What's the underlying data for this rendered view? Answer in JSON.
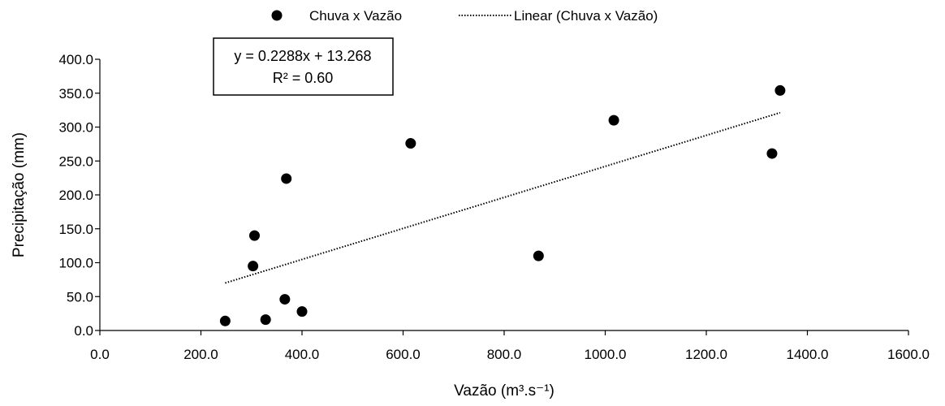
{
  "chart_data": {
    "type": "scatter",
    "xlabel": "Vazão (m³.s⁻¹)",
    "ylabel": "Precipitação (mm)",
    "xlim": [
      0,
      1600
    ],
    "ylim": [
      0,
      400
    ],
    "x_ticks": [
      "0.0",
      "200.0",
      "400.0",
      "600.0",
      "800.0",
      "1000.0",
      "1200.0",
      "1400.0",
      "1600.0"
    ],
    "y_ticks": [
      "0.0",
      "50.0",
      "100.0",
      "150.0",
      "200.0",
      "250.0",
      "300.0",
      "350.0",
      "400.0"
    ],
    "series": [
      {
        "name": "Chuva x Vazão",
        "color": "#000000",
        "points": [
          {
            "x": 248,
            "y": 14
          },
          {
            "x": 328,
            "y": 16
          },
          {
            "x": 400,
            "y": 28
          },
          {
            "x": 366,
            "y": 46
          },
          {
            "x": 303,
            "y": 95
          },
          {
            "x": 306,
            "y": 140
          },
          {
            "x": 369,
            "y": 224
          },
          {
            "x": 615,
            "y": 276
          },
          {
            "x": 868,
            "y": 110
          },
          {
            "x": 1017,
            "y": 310
          },
          {
            "x": 1330,
            "y": 261
          },
          {
            "x": 1346,
            "y": 354
          }
        ]
      }
    ],
    "trendline": {
      "name": "Linear (Chuva x Vazão)",
      "slope": 0.2288,
      "intercept": 13.268,
      "x_range": [
        248,
        1346
      ],
      "style": "dotted",
      "equation": "y = 0.2288x + 13.268",
      "r2": "R² = 0.60"
    },
    "legend": {
      "placement": "top-center",
      "marker_label": "Chuva x Vazão",
      "line_label": "Linear (Chuva x Vazão)"
    },
    "grid": false
  }
}
